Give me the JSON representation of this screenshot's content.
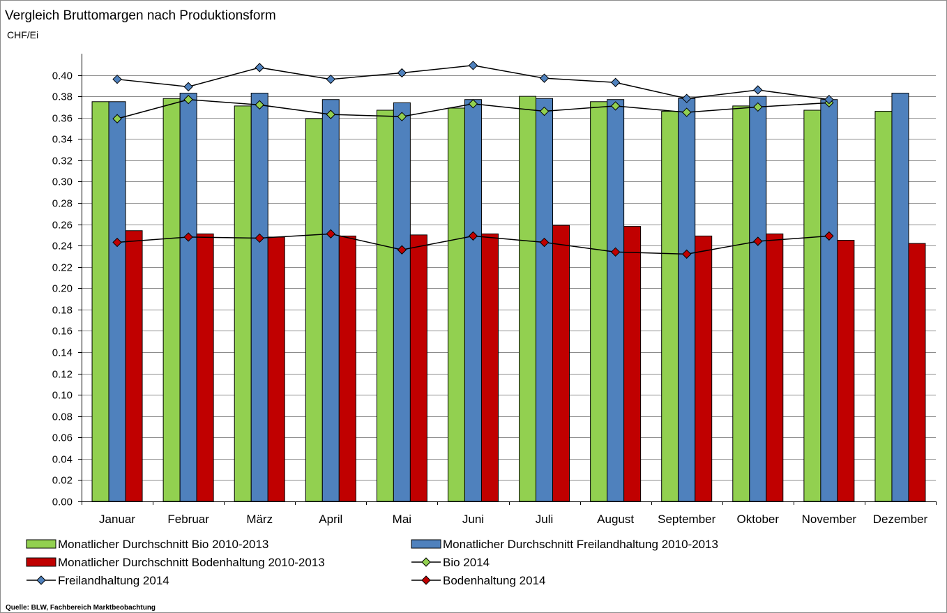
{
  "chart_data": {
    "type": "bar",
    "title": "Vergleich Bruttomargen nach Produktionsform",
    "ylabel": "CHF/Ei",
    "ylim": [
      0,
      0.42
    ],
    "ytick_step": 0.02,
    "grid": true,
    "legend_position": "bottom",
    "categories": [
      "Januar",
      "Februar",
      "März",
      "April",
      "Mai",
      "Juni",
      "Juli",
      "August",
      "September",
      "Oktober",
      "November",
      "Dezember"
    ],
    "bar_series": [
      {
        "name": "Monatlicher Durchschnitt Bio 2010-2013",
        "color": "#92d050",
        "values": [
          0.375,
          0.378,
          0.371,
          0.359,
          0.367,
          0.369,
          0.38,
          0.375,
          0.366,
          0.371,
          0.367,
          0.366
        ]
      },
      {
        "name": "Monatlicher Durchschnitt Freilandhaltung 2010-2013",
        "color": "#4f81bd",
        "values": [
          0.375,
          0.383,
          0.383,
          0.377,
          0.374,
          0.377,
          0.378,
          0.377,
          0.378,
          0.38,
          0.377,
          0.383
        ]
      },
      {
        "name": "Monatlicher Durchschnitt Bodenhaltung 2010-2013",
        "color": "#c00000",
        "values": [
          0.254,
          0.251,
          0.248,
          0.249,
          0.25,
          0.251,
          0.259,
          0.258,
          0.249,
          0.251,
          0.245,
          0.242
        ]
      }
    ],
    "line_series": [
      {
        "name": "Bio 2014",
        "color": "#92d050",
        "values": [
          0.359,
          0.377,
          0.372,
          0.363,
          0.361,
          0.373,
          0.366,
          0.371,
          0.365,
          0.37,
          0.374,
          null
        ]
      },
      {
        "name": "Freilandhaltung 2014",
        "color": "#4f81bd",
        "values": [
          0.396,
          0.389,
          0.407,
          0.396,
          0.402,
          0.409,
          0.397,
          0.393,
          0.378,
          0.386,
          0.377,
          null
        ]
      },
      {
        "name": "Bodenhaltung 2014",
        "color": "#c00000",
        "values": [
          0.243,
          0.248,
          0.247,
          0.251,
          0.236,
          0.249,
          0.243,
          0.234,
          0.232,
          0.244,
          0.249,
          null
        ]
      }
    ],
    "source": "Quelle: BLW, Fachbereich Marktbeobachtung"
  }
}
